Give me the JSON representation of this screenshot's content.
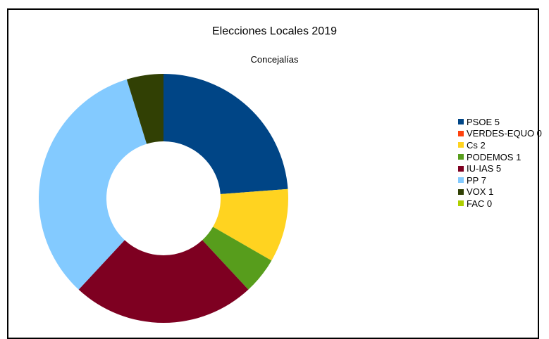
{
  "chart_data": {
    "type": "pie",
    "variant": "donut",
    "title": "Elecciones Locales 2019",
    "subtitle": "Concejalías",
    "legend_position": "right",
    "slices": [
      {
        "label": "PSOE 5",
        "value": 5,
        "color": "#004586"
      },
      {
        "label": "VERDES-EQUO 0",
        "value": 0,
        "color": "#ff420e"
      },
      {
        "label": "Cs 2",
        "value": 2,
        "color": "#ffd320"
      },
      {
        "label": "PODEMOS 1",
        "value": 1,
        "color": "#579d1c"
      },
      {
        "label": "IU-IAS 5",
        "value": 5,
        "color": "#7e0021"
      },
      {
        "label": "PP 7",
        "value": 7,
        "color": "#83caff"
      },
      {
        "label": "VOX 1",
        "value": 1,
        "color": "#314004"
      },
      {
        "label": "FAC 0",
        "value": 0,
        "color": "#aecf00"
      }
    ]
  }
}
